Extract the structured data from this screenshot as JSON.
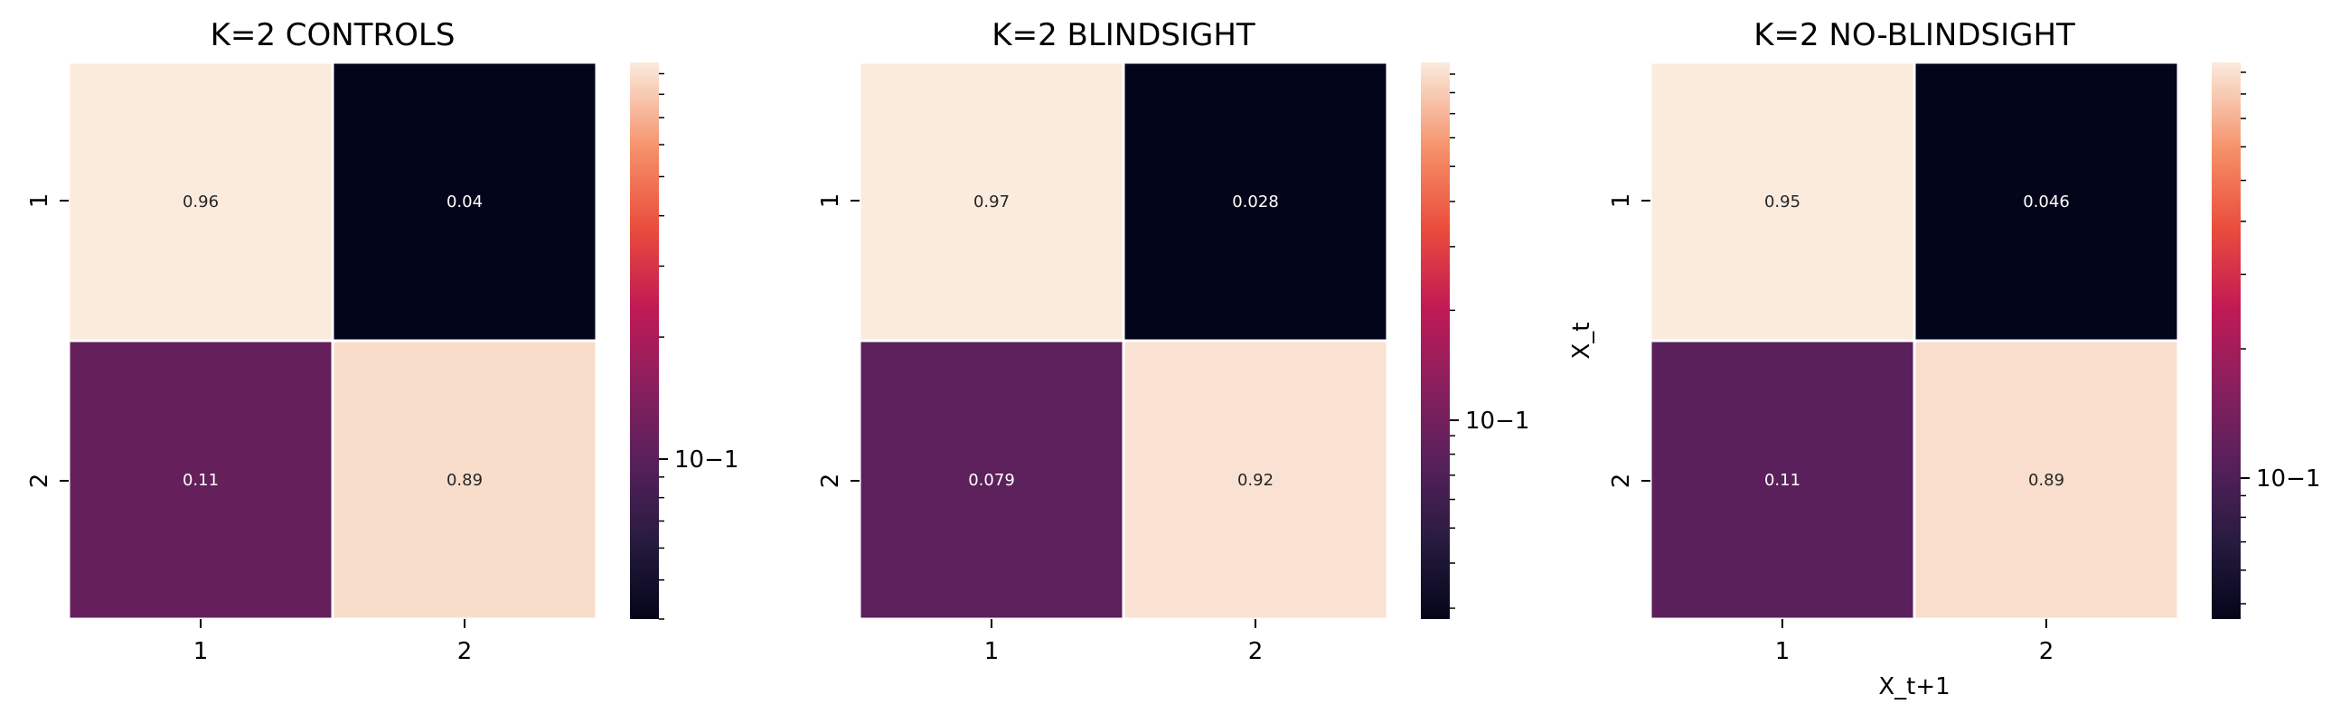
{
  "chart_data": [
    {
      "type": "heatmap",
      "title": "K=2 CONTROLS",
      "x_tick_labels": [
        "1",
        "2"
      ],
      "y_tick_labels": [
        "1",
        "2"
      ],
      "xlabel": "",
      "ylabel": "",
      "values": [
        [
          0.96,
          0.04
        ],
        [
          0.11,
          0.89
        ]
      ],
      "cell_labels": [
        [
          "0.96",
          "0.04"
        ],
        [
          "0.11",
          "0.89"
        ]
      ],
      "colorbar": {
        "scale": "log",
        "range": [
          0.04,
          0.96
        ],
        "tick_label": "10−1",
        "tick_value": 0.1
      }
    },
    {
      "type": "heatmap",
      "title": "K=2 BLINDSIGHT",
      "x_tick_labels": [
        "1",
        "2"
      ],
      "y_tick_labels": [
        "1",
        "2"
      ],
      "xlabel": "",
      "ylabel": "",
      "values": [
        [
          0.97,
          0.028
        ],
        [
          0.079,
          0.92
        ]
      ],
      "cell_labels": [
        [
          "0.97",
          "0.028"
        ],
        [
          "0.079",
          "0.92"
        ]
      ],
      "colorbar": {
        "scale": "log",
        "range": [
          0.028,
          0.97
        ],
        "tick_label": "10−1",
        "tick_value": 0.1
      }
    },
    {
      "type": "heatmap",
      "title": "K=2 NO-BLINDSIGHT",
      "x_tick_labels": [
        "1",
        "2"
      ],
      "y_tick_labels": [
        "1",
        "2"
      ],
      "xlabel": "X_t+1",
      "ylabel": "X_t",
      "values": [
        [
          0.95,
          0.046
        ],
        [
          0.11,
          0.89
        ]
      ],
      "cell_labels": [
        [
          "0.95",
          "0.046"
        ],
        [
          "0.11",
          "0.89"
        ]
      ],
      "colorbar": {
        "scale": "log",
        "range": [
          0.046,
          0.95
        ],
        "tick_label": "10−1",
        "tick_value": 0.1
      }
    }
  ]
}
